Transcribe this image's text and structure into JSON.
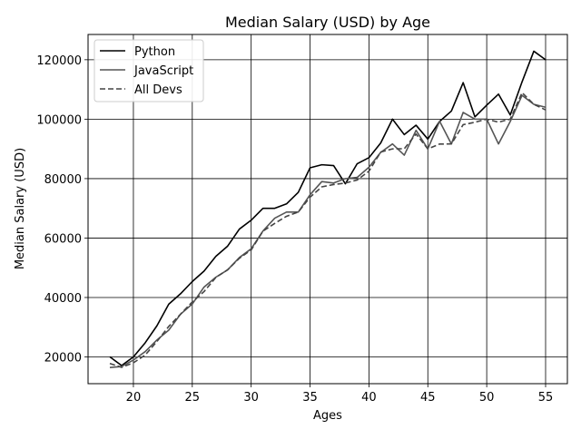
{
  "chart_data": {
    "type": "line",
    "title": "Median Salary (USD) by Age",
    "xlabel": "Ages",
    "ylabel": "Median Salary (USD)",
    "xlim": [
      16.15,
      56.85
    ],
    "ylim": [
      11000,
      128500
    ],
    "xticks": [
      20,
      25,
      30,
      35,
      40,
      45,
      50,
      55
    ],
    "yticks": [
      20000,
      40000,
      60000,
      80000,
      100000,
      120000
    ],
    "grid": true,
    "legend": "top-left",
    "x": [
      18,
      19,
      20,
      21,
      22,
      23,
      24,
      25,
      26,
      27,
      28,
      29,
      30,
      31,
      32,
      33,
      34,
      35,
      36,
      37,
      38,
      39,
      40,
      41,
      42,
      43,
      44,
      45,
      46,
      47,
      48,
      49,
      50,
      51,
      52,
      53,
      54,
      55
    ],
    "series": [
      {
        "name": "Python",
        "color": "#000000",
        "dash": "solid",
        "values": [
          20046,
          17100,
          20000,
          24744,
          30500,
          37732,
          41247,
          45372,
          48876,
          53850,
          57287,
          63016,
          65998,
          70003,
          70000,
          71496,
          75370,
          83640,
          84666,
          84392,
          78254,
          85000,
          87038,
          91991,
          100000,
          94796,
          97962,
          93302,
          99240,
          102736,
          112285,
          100771,
          104708,
          108423,
          101407,
          112542,
          122870,
          120000
        ]
      },
      {
        "name": "JavaScript",
        "color": "#555555",
        "dash": "solid",
        "values": [
          16446,
          16791,
          18942,
          21780,
          25704,
          29000,
          34372,
          37810,
          43515,
          46823,
          49293,
          53437,
          56373,
          62375,
          66674,
          68745,
          68746,
          74583,
          79000,
          78508,
          79996,
          80403,
          83820,
          88833,
          91660,
          87892,
          96243,
          90000,
          99313,
          91660,
          102264,
          100000,
          100000,
          91660,
          99240,
          108000,
          105000,
          104000
        ]
      },
      {
        "name": "All Devs",
        "color": "#444444",
        "dash": "dashed",
        "values": [
          17784,
          16500,
          18012,
          20628,
          25206,
          30252,
          34368,
          38496,
          42000,
          46752,
          49320,
          53200,
          56000,
          62316,
          64928,
          67317,
          68748,
          73752,
          77232,
          78000,
          78508,
          79536,
          82488,
          88935,
          90000,
          90056,
          95000,
          90000,
          91633,
          91660,
          98150,
          98964,
          100000,
          98988,
          100000,
          108923,
          105000,
          103117
        ]
      }
    ]
  }
}
